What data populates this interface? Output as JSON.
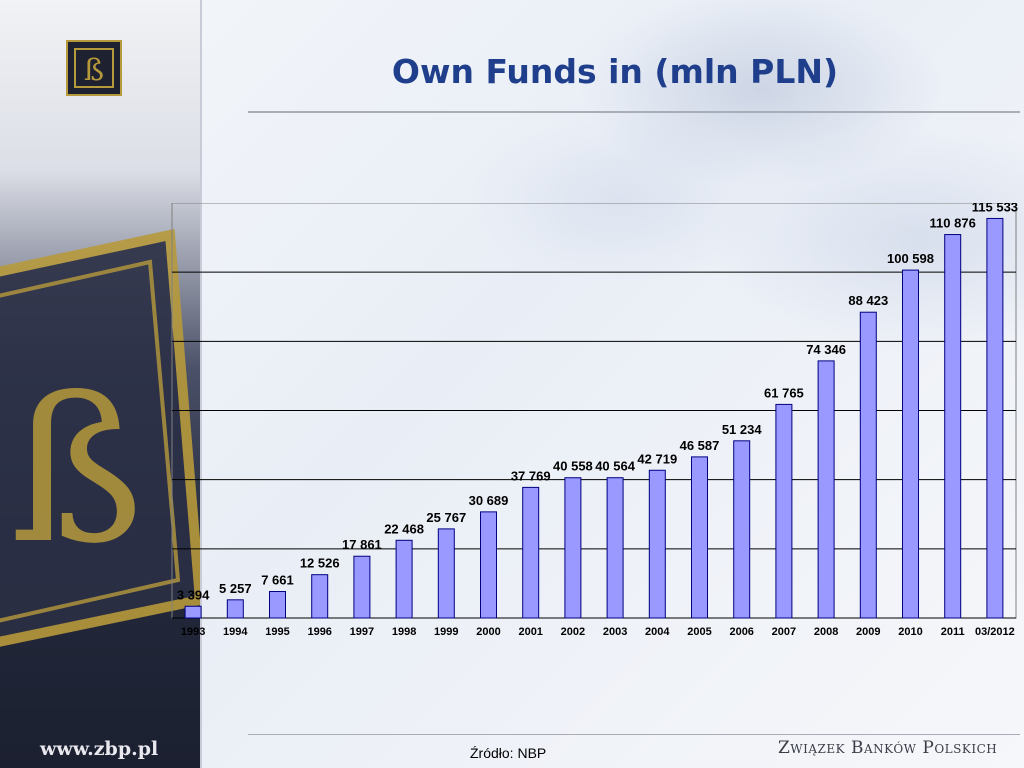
{
  "slide": {
    "title": "Own Funds in (mln PLN)",
    "source": "Źródło: NBP",
    "website": "www.zbp.pl",
    "organization": "Związek Banków Polskich"
  },
  "colors": {
    "bar_fill": "#9999ff",
    "bar_stroke": "#000080",
    "title": "#1f3f8c",
    "logo_gold": "#b79a3c"
  },
  "chart_data": {
    "type": "bar",
    "title": "",
    "xlabel": "",
    "ylabel": "",
    "ylim": [
      0,
      120000
    ],
    "grid": true,
    "legend": "none",
    "categories": [
      "1993",
      "1994",
      "1995",
      "1996",
      "1997",
      "1998",
      "1999",
      "2000",
      "2001",
      "2002",
      "2003",
      "2004",
      "2005",
      "2006",
      "2007",
      "2008",
      "2009",
      "2010",
      "2011",
      "03/2012"
    ],
    "values": [
      3394,
      5257,
      7661,
      12526,
      17861,
      22468,
      25767,
      30689,
      37769,
      40558,
      40564,
      42719,
      46587,
      51234,
      61765,
      74346,
      88423,
      100598,
      110876,
      115533
    ],
    "value_labels": [
      "3 394",
      "5 257",
      "7 661",
      "12 526",
      "17 861",
      "22 468",
      "25 767",
      "30 689",
      "37 769",
      "40 558",
      "40 564",
      "42 719",
      "46 587",
      "51 234",
      "61 765",
      "74 346",
      "88 423",
      "100 598",
      "110 876",
      "115 533"
    ]
  }
}
